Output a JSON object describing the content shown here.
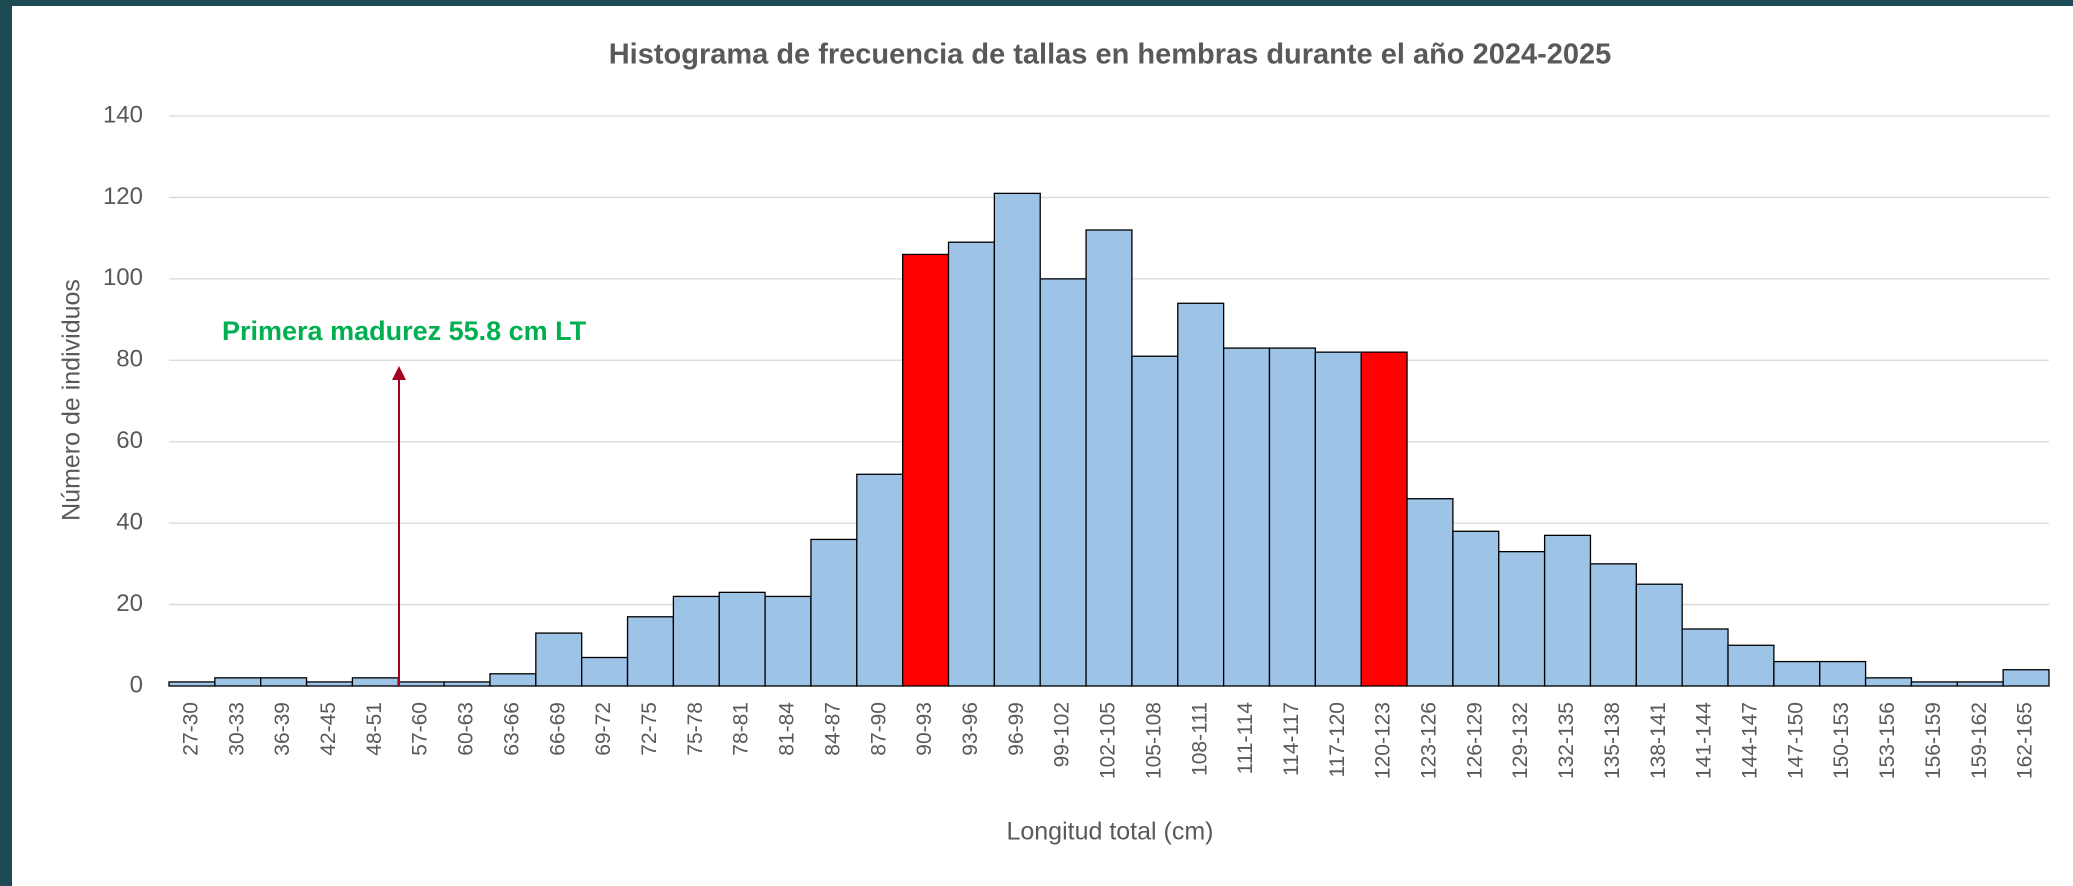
{
  "chart_data": {
    "type": "bar",
    "title": "Histograma de frecuencia de tallas en hembras durante el año 2024-2025",
    "xlabel": "Longitud total (cm)",
    "ylabel": "Número de individuos",
    "annotation": "Primera madurez 55.8 cm LT",
    "categories": [
      "27-30",
      "30-33",
      "36-39",
      "42-45",
      "48-51",
      "57-60",
      "60-63",
      "63-66",
      "66-69",
      "69-72",
      "72-75",
      "75-78",
      "78-81",
      "81-84",
      "84-87",
      "87-90",
      "90-93",
      "93-96",
      "96-99",
      "99-102",
      "102-105",
      "105-108",
      "108-111",
      "111-114",
      "114-117",
      "117-120",
      "120-123",
      "123-126",
      "126-129",
      "129-132",
      "132-135",
      "135-138",
      "138-141",
      "141-144",
      "144-147",
      "147-150",
      "150-153",
      "153-156",
      "156-159",
      "159-162",
      "162-165"
    ],
    "values": [
      1,
      2,
      2,
      1,
      2,
      1,
      1,
      3,
      13,
      7,
      17,
      22,
      23,
      22,
      36,
      52,
      106,
      109,
      121,
      100,
      112,
      81,
      94,
      83,
      83,
      82,
      82,
      46,
      38,
      33,
      37,
      30,
      25,
      14,
      10,
      6,
      6,
      2,
      1,
      1,
      4
    ],
    "colors": [
      "#9dc3e6",
      "#9dc3e6",
      "#9dc3e6",
      "#9dc3e6",
      "#9dc3e6",
      "#9dc3e6",
      "#9dc3e6",
      "#9dc3e6",
      "#9dc3e6",
      "#9dc3e6",
      "#9dc3e6",
      "#9dc3e6",
      "#9dc3e6",
      "#9dc3e6",
      "#9dc3e6",
      "#9dc3e6",
      "#ff0000",
      "#9dc3e6",
      "#9dc3e6",
      "#9dc3e6",
      "#9dc3e6",
      "#9dc3e6",
      "#9dc3e6",
      "#9dc3e6",
      "#9dc3e6",
      "#9dc3e6",
      "#ff0000",
      "#9dc3e6",
      "#9dc3e6",
      "#9dc3e6",
      "#9dc3e6",
      "#9dc3e6",
      "#9dc3e6",
      "#9dc3e6",
      "#9dc3e6",
      "#9dc3e6",
      "#9dc3e6",
      "#9dc3e6",
      "#9dc3e6",
      "#9dc3e6",
      "#9dc3e6"
    ],
    "ylim": [
      0,
      140
    ],
    "yticks": [
      0,
      20,
      40,
      60,
      80,
      100,
      120,
      140
    ],
    "grid": true
  }
}
